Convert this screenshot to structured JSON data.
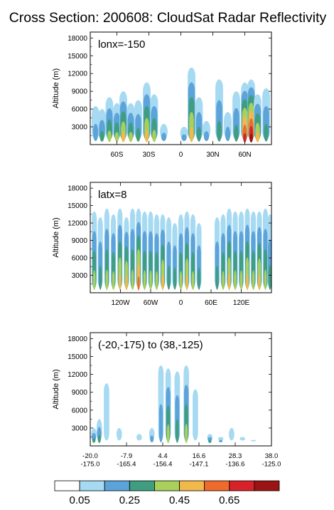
{
  "title": "Cross Section: 200608: CloudSat Radar Reflectivity",
  "colors": {
    "levels": [
      "#ffffff",
      "#a6d9f2",
      "#5ba3d9",
      "#3f9e7f",
      "#a8d05a",
      "#f2b84b",
      "#ef6a2d",
      "#d8222a",
      "#9c1313"
    ],
    "frame": "#000000"
  },
  "colorbar": {
    "label_indices": [
      1,
      3,
      5,
      7
    ],
    "labels": [
      "0.05",
      "0.25",
      "0.45",
      "0.65"
    ]
  },
  "chart_data": [
    {
      "type": "heatmap",
      "annotation": "lonx=-150",
      "xlabel": "",
      "ylabel": "Altitude (m)",
      "xlim": [
        -85,
        85
      ],
      "ylim": [
        0,
        19000
      ],
      "yticks": [
        3000,
        6000,
        9000,
        12000,
        15000,
        18000
      ],
      "ytick_labels": [
        "3000",
        "6000",
        "9000",
        "12000",
        "15000",
        "18000"
      ],
      "xticks": [
        -60,
        -30,
        0,
        30,
        60
      ],
      "xtick_labels": [
        [
          "60S"
        ],
        [
          "30S"
        ],
        [
          "0"
        ],
        [
          "30N"
        ],
        [
          "60N"
        ]
      ],
      "grid": false,
      "blobs": [
        {
          "x": -80,
          "top": 6500,
          "peak": 2
        },
        {
          "x": -74,
          "top": 6000,
          "peak": 3
        },
        {
          "x": -67,
          "top": 8000,
          "peak": 4
        },
        {
          "x": -60,
          "top": 7000,
          "peak": 4
        },
        {
          "x": -54,
          "top": 9000,
          "peak": 5
        },
        {
          "x": -47,
          "top": 7000,
          "peak": 4
        },
        {
          "x": -40,
          "top": 7500,
          "peak": 3
        },
        {
          "x": -32,
          "top": 10500,
          "peak": 5
        },
        {
          "x": -25,
          "top": 8500,
          "peak": 4
        },
        {
          "x": -16,
          "top": 3500,
          "peak": 2
        },
        {
          "x": 3,
          "top": 3000,
          "peak": 2
        },
        {
          "x": 10,
          "top": 13000,
          "peak": 5
        },
        {
          "x": 17,
          "top": 8000,
          "peak": 3
        },
        {
          "x": 24,
          "top": 4000,
          "peak": 2
        },
        {
          "x": 36,
          "top": 11000,
          "peak": 3
        },
        {
          "x": 44,
          "top": 5500,
          "peak": 2
        },
        {
          "x": 52,
          "top": 9000,
          "peak": 3
        },
        {
          "x": 60,
          "top": 10500,
          "peak": 7
        },
        {
          "x": 66,
          "top": 11000,
          "peak": 8
        },
        {
          "x": 72,
          "top": 8500,
          "peak": 5
        },
        {
          "x": 80,
          "top": 9500,
          "peak": 3
        }
      ]
    },
    {
      "type": "heatmap",
      "annotation": "latx=8",
      "xlabel": "",
      "ylabel": "Altitude (m)",
      "xlim": [
        -180,
        180
      ],
      "ylim": [
        0,
        19000
      ],
      "yticks": [
        3000,
        6000,
        9000,
        12000,
        15000,
        18000
      ],
      "ytick_labels": [
        "3000",
        "6000",
        "9000",
        "12000",
        "15000",
        "18000"
      ],
      "xticks": [
        -120,
        -60,
        0,
        60,
        120
      ],
      "xtick_labels": [
        [
          "120W"
        ],
        [
          "60W"
        ],
        [
          "0"
        ],
        [
          "60E"
        ],
        [
          "120E"
        ]
      ],
      "grid": false,
      "blobs": [
        {
          "x": -172,
          "top": 14000,
          "peak": 4
        },
        {
          "x": -160,
          "top": 13000,
          "peak": 3
        },
        {
          "x": -147,
          "top": 14500,
          "peak": 4
        },
        {
          "x": -134,
          "top": 13500,
          "peak": 4
        },
        {
          "x": -121,
          "top": 14500,
          "peak": 5
        },
        {
          "x": -108,
          "top": 13000,
          "peak": 5
        },
        {
          "x": -96,
          "top": 14500,
          "peak": 4
        },
        {
          "x": -84,
          "top": 14500,
          "peak": 6
        },
        {
          "x": -72,
          "top": 14000,
          "peak": 4
        },
        {
          "x": -60,
          "top": 14000,
          "peak": 4
        },
        {
          "x": -48,
          "top": 13500,
          "peak": 4
        },
        {
          "x": -36,
          "top": 13500,
          "peak": 5
        },
        {
          "x": -24,
          "top": 13000,
          "peak": 3
        },
        {
          "x": -12,
          "top": 12000,
          "peak": 3
        },
        {
          "x": 0,
          "top": 13500,
          "peak": 4
        },
        {
          "x": 12,
          "top": 14000,
          "peak": 5
        },
        {
          "x": 24,
          "top": 13500,
          "peak": 4
        },
        {
          "x": 36,
          "top": 12000,
          "peak": 3
        },
        {
          "x": 72,
          "top": 13000,
          "peak": 3
        },
        {
          "x": 84,
          "top": 13500,
          "peak": 4
        },
        {
          "x": 96,
          "top": 14500,
          "peak": 5
        },
        {
          "x": 108,
          "top": 14000,
          "peak": 4
        },
        {
          "x": 120,
          "top": 14000,
          "peak": 4
        },
        {
          "x": 132,
          "top": 14500,
          "peak": 5
        },
        {
          "x": 144,
          "top": 14000,
          "peak": 4
        },
        {
          "x": 156,
          "top": 14000,
          "peak": 5
        },
        {
          "x": 168,
          "top": 14500,
          "peak": 4
        },
        {
          "x": 177,
          "top": 13500,
          "peak": 3
        }
      ]
    },
    {
      "type": "heatmap",
      "annotation": "(-20,-175) to (38,-125)",
      "xlabel": "",
      "ylabel": "Altitude (m)",
      "xlim": [
        0,
        5
      ],
      "ylim": [
        0,
        19000
      ],
      "yticks": [
        3000,
        6000,
        9000,
        12000,
        15000,
        18000
      ],
      "ytick_labels": [
        "3000",
        "6000",
        "9000",
        "12000",
        "15000",
        "18000"
      ],
      "xticks": [
        0,
        1,
        2,
        3,
        4,
        5
      ],
      "xtick_labels": [
        [
          "-20.0",
          "-175.0"
        ],
        [
          "-7.9",
          "-165.4"
        ],
        [
          "4.4",
          "-156.4"
        ],
        [
          "16.6",
          "-147.1"
        ],
        [
          "28.3",
          "-136.6"
        ],
        [
          "38.0",
          "-125.0"
        ]
      ],
      "grid": false,
      "blobs": [
        {
          "x": 0.1,
          "top": 3000,
          "peak": 3
        },
        {
          "x": 0.25,
          "top": 4500,
          "peak": 3
        },
        {
          "x": 0.45,
          "top": 10500,
          "peak": 1
        },
        {
          "x": 0.8,
          "top": 3000,
          "peak": 1
        },
        {
          "x": 1.35,
          "top": 2000,
          "peak": 1
        },
        {
          "x": 1.7,
          "top": 3000,
          "peak": 2
        },
        {
          "x": 1.95,
          "top": 13500,
          "peak": 2
        },
        {
          "x": 2.15,
          "top": 13000,
          "peak": 4
        },
        {
          "x": 2.4,
          "top": 12500,
          "peak": 3
        },
        {
          "x": 2.65,
          "top": 13500,
          "peak": 4
        },
        {
          "x": 2.9,
          "top": 9500,
          "peak": 1
        },
        {
          "x": 3.3,
          "top": 2000,
          "peak": 3
        },
        {
          "x": 3.6,
          "top": 1500,
          "peak": 2
        },
        {
          "x": 3.9,
          "top": 3000,
          "peak": 1
        },
        {
          "x": 4.2,
          "top": 1500,
          "peak": 1
        },
        {
          "x": 4.5,
          "top": 1000,
          "peak": 1
        }
      ]
    }
  ]
}
